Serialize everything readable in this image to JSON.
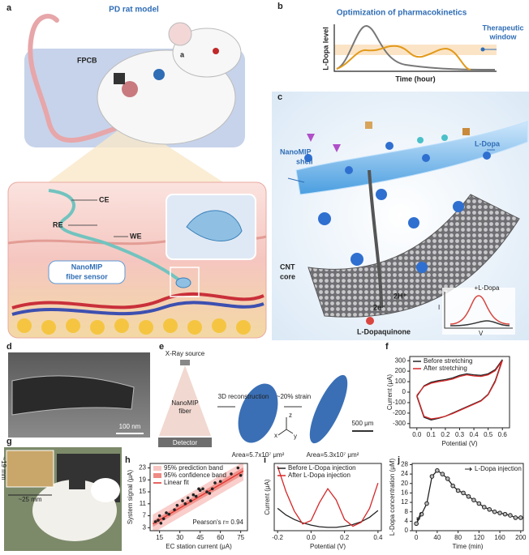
{
  "panel_labels": [
    "a",
    "b",
    "c",
    "d",
    "e",
    "f",
    "g",
    "h",
    "i",
    "j"
  ],
  "a": {
    "title": "PD rat model",
    "board": "FPCB",
    "marker": "a",
    "electrodes": [
      "CE",
      "RE",
      "WE"
    ],
    "sensor": [
      "NanoMIP",
      "fiber sensor"
    ]
  },
  "b": {
    "title": "Optimization of pharmacokinetics",
    "y_label": "L-Dopa level",
    "x_label": "Time (hour)",
    "window": [
      "Therapeutic",
      "window"
    ]
  },
  "c": {
    "shell": [
      "NanoMIP",
      "shell"
    ],
    "analyte": "L-Dopa",
    "core": [
      "CNT",
      "core"
    ],
    "protons": "2H⁺",
    "electrons": "2e⁻",
    "product": "L-Dopaquinone",
    "inset": {
      "trace": "+L-Dopa",
      "y": "I",
      "x": "V"
    }
  },
  "d": {
    "scale_bar": "100 nm"
  },
  "e": {
    "source": "X-Ray source",
    "fiber": [
      "NanoMIP",
      "fiber"
    ],
    "detector": "Detector",
    "step1": "3D reconstruction",
    "step2": "~20% strain",
    "area_before": "Area=5.7x10⁷ μm²",
    "area_after": "Area=5.3x10⁷ μm²",
    "scale_bar": "500 μm",
    "axes": [
      "x",
      "y",
      "z"
    ]
  },
  "g": {
    "width": "~25 mm",
    "height": "~19 mm"
  },
  "chart_data": [
    {
      "type": "line",
      "x_label": "Potential (V)",
      "y_label": "Current (μA)",
      "xlim": [
        -0.05,
        0.65
      ],
      "ylim": [
        -340,
        340
      ],
      "xticks": [
        {
          "value": 0,
          "label": "0.0"
        },
        0.1,
        0.2,
        0.3,
        0.4,
        0.5,
        0.6
      ],
      "yticks": [
        -300,
        -200,
        -100,
        0,
        100,
        200,
        300
      ],
      "series": [
        {
          "name": "Before stretching",
          "color": "#222222",
          "x": [
            0,
            0.05,
            0.1,
            0.15,
            0.2,
            0.25,
            0.3,
            0.35,
            0.4,
            0.45,
            0.5,
            0.55,
            0.6,
            0.55,
            0.5,
            0.45,
            0.4,
            0.35,
            0.3,
            0.25,
            0.2,
            0.15,
            0.1,
            0.05,
            0
          ],
          "values": [
            -40,
            60,
            95,
            110,
            120,
            135,
            160,
            175,
            165,
            160,
            175,
            215,
            310,
            110,
            -20,
            -80,
            -110,
            -140,
            -170,
            -200,
            -230,
            -250,
            -265,
            -240,
            -40
          ]
        },
        {
          "name": "After stretching",
          "color": "#d62728",
          "x": [
            0,
            0.05,
            0.1,
            0.15,
            0.2,
            0.25,
            0.3,
            0.35,
            0.4,
            0.45,
            0.5,
            0.55,
            0.6,
            0.55,
            0.5,
            0.45,
            0.4,
            0.35,
            0.3,
            0.25,
            0.2,
            0.15,
            0.1,
            0.05,
            0
          ],
          "values": [
            -30,
            55,
            85,
            100,
            110,
            125,
            150,
            165,
            155,
            150,
            165,
            205,
            300,
            100,
            -25,
            -85,
            -115,
            -145,
            -175,
            -205,
            -230,
            -245,
            -255,
            -230,
            -30
          ]
        }
      ]
    },
    {
      "type": "scatter",
      "x_label": "EC station current (μA)",
      "y_label": "System signal (μA)",
      "xlim": [
        8,
        80
      ],
      "ylim": [
        2,
        24.5
      ],
      "xticks": [
        15,
        30,
        45,
        60,
        75
      ],
      "yticks": [
        3,
        7,
        11,
        15,
        19,
        23
      ],
      "annotation": "Pearson's r= 0.94",
      "bands": [
        {
          "name": "95% prediction band",
          "color": "#f8c6c2",
          "x": [
            10,
            77
          ],
          "lower": [
            1.2,
            18.8
          ],
          "upper": [
            7.4,
            25
          ]
        },
        {
          "name": "95% confidence band",
          "color": "#ef8a84",
          "x": [
            10,
            77
          ],
          "lower": [
            3.3,
            20.8
          ],
          "upper": [
            5.3,
            23.2
          ]
        }
      ],
      "fit": {
        "name": "Linear fit",
        "color": "#e0302a",
        "x": [
          10,
          77
        ],
        "values": [
          4.3,
          22
        ]
      },
      "points": {
        "color": "#222222",
        "x": [
          12,
          14,
          15,
          16,
          18,
          20,
          22,
          26,
          28,
          32,
          34,
          36,
          38,
          40,
          42,
          44,
          45,
          47,
          50,
          52,
          54,
          56,
          60,
          68,
          73,
          75
        ],
        "values": [
          5,
          5.5,
          7,
          4.5,
          6,
          8,
          7.5,
          9,
          10.5,
          12,
          11,
          13,
          12,
          14,
          13.5,
          16,
          15.5,
          16,
          15,
          14.5,
          16,
          18,
          18.5,
          21,
          23,
          20.5
        ]
      }
    },
    {
      "type": "line",
      "x_label": "Potential (V)",
      "y_label": "Current (μA)",
      "xlim": [
        -0.22,
        0.42
      ],
      "ylim": [
        0,
        120
      ],
      "xticks": [
        -0.2,
        {
          "value": 0,
          "label": "0.0"
        },
        0.2,
        0.4
      ],
      "series": [
        {
          "name": "Before L-Dopa injection",
          "color": "#222222",
          "x": [
            -0.2,
            -0.15,
            -0.1,
            -0.05,
            0,
            0.05,
            0.1,
            0.15,
            0.2,
            0.25,
            0.3,
            0.35,
            0.4
          ],
          "values": [
            40,
            28,
            20,
            14,
            10,
            7,
            6,
            6,
            8,
            11,
            16,
            24,
            36
          ]
        },
        {
          "name": "After L-Dopa injection",
          "color": "#d62728",
          "x": [
            -0.2,
            -0.15,
            -0.1,
            -0.05,
            0,
            0.05,
            0.1,
            0.15,
            0.2,
            0.25,
            0.3,
            0.35,
            0.4
          ],
          "values": [
            115,
            70,
            35,
            12,
            18,
            50,
            75,
            55,
            20,
            8,
            15,
            40,
            85
          ]
        }
      ]
    },
    {
      "type": "line",
      "x_label": "Time (min)",
      "y_label": "L-Dopa concentration (μM)",
      "xlim": [
        -8,
        205
      ],
      "ylim": [
        0,
        28.5
      ],
      "xticks": [
        0,
        40,
        80,
        120,
        160,
        200
      ],
      "yticks": [
        0,
        4,
        8,
        12,
        16,
        20,
        24,
        28
      ],
      "markers": true,
      "annotation": "L-Dopa injection",
      "series": [
        {
          "color": "#222222",
          "x": [
            0,
            10,
            20,
            30,
            40,
            50,
            60,
            70,
            80,
            90,
            100,
            110,
            120,
            130,
            140,
            150,
            160,
            170,
            180,
            190,
            200
          ],
          "values": [
            3,
            7,
            11.5,
            23,
            25.5,
            24,
            22,
            19,
            17,
            16,
            14.5,
            13,
            11.5,
            10,
            9,
            8,
            7.5,
            7,
            6.5,
            5.5,
            5.5
          ]
        }
      ]
    }
  ]
}
